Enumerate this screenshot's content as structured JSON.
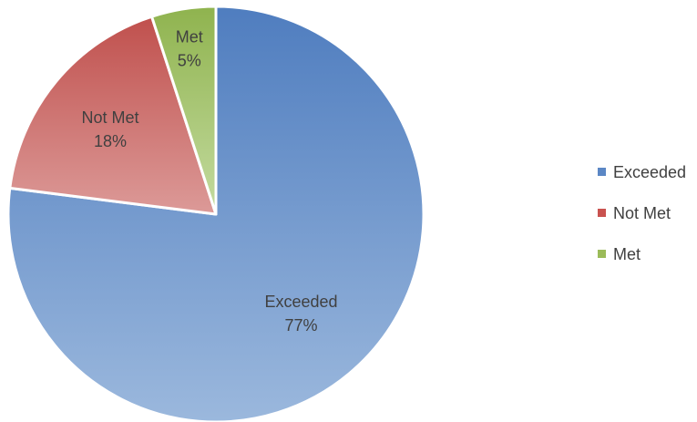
{
  "chart_data": {
    "type": "pie",
    "title": "",
    "categories": [
      "Exceeded",
      "Not Met",
      "Met"
    ],
    "values": [
      77,
      18,
      5
    ],
    "data_labels": [
      "77%",
      "18%",
      "5%"
    ],
    "colors": [
      "#5b87c5",
      "#c9524f",
      "#9bbb59"
    ],
    "start_angle_deg": 0,
    "direction": "clockwise",
    "legend": {
      "position": "right",
      "entries": [
        "Exceeded",
        "Not Met",
        "Met"
      ]
    }
  }
}
